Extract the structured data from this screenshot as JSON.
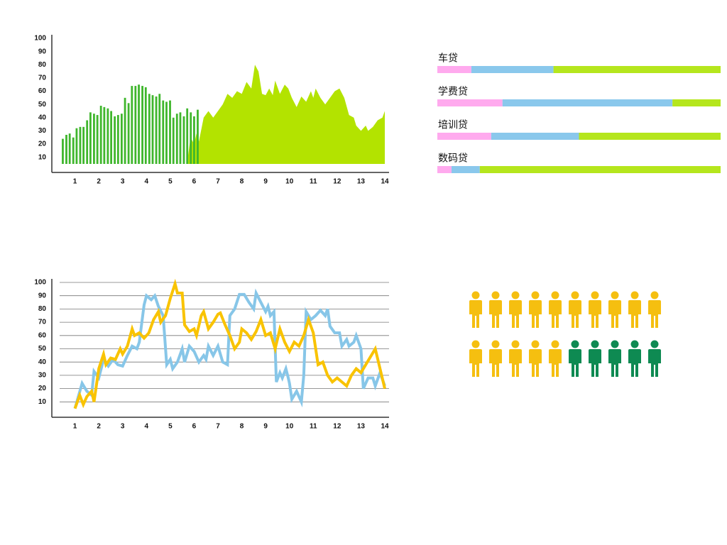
{
  "chart_data": [
    {
      "type": "combo",
      "xlim": [
        0,
        14
      ],
      "xticks": [
        1,
        2,
        3,
        4,
        5,
        6,
        7,
        8,
        9,
        10,
        11,
        12,
        13,
        14
      ],
      "ylim": [
        5,
        100
      ],
      "yticks": [
        10,
        20,
        30,
        40,
        50,
        60,
        70,
        80,
        90,
        100
      ],
      "series": [
        {
          "type": "bar",
          "color": "#3fb62c",
          "x": [
            0.49,
            0.64,
            0.78,
            0.93,
            1.07,
            1.22,
            1.36,
            1.51,
            1.65,
            1.8,
            1.94,
            2.09,
            2.23,
            2.38,
            2.52,
            2.67,
            2.81,
            2.96,
            3.1,
            3.25,
            3.39,
            3.54,
            3.68,
            3.83,
            3.97,
            4.12,
            4.26,
            4.41,
            4.55,
            4.7,
            4.84,
            4.99,
            5.13,
            5.28,
            5.42,
            5.57,
            5.71,
            5.86,
            6.0,
            6.15
          ],
          "values": [
            24,
            27,
            28,
            25,
            32,
            33,
            33,
            38,
            44,
            43,
            42,
            49,
            48,
            47,
            45,
            41,
            42,
            43,
            55,
            51,
            64,
            64,
            65,
            64,
            63,
            58,
            57,
            56,
            58,
            53,
            52,
            53,
            40,
            43,
            44,
            41,
            47,
            44,
            41,
            46
          ]
        },
        {
          "type": "area",
          "color": "#b3e300",
          "x": [
            5.7,
            5.85,
            6.0,
            6.1,
            6.2,
            6.4,
            6.6,
            6.8,
            7.0,
            7.2,
            7.4,
            7.6,
            7.8,
            8.0,
            8.2,
            8.4,
            8.55,
            8.7,
            8.85,
            9.0,
            9.15,
            9.3,
            9.4,
            9.6,
            9.8,
            9.95,
            10.1,
            10.3,
            10.5,
            10.7,
            10.9,
            11.0,
            11.1,
            11.3,
            11.5,
            11.7,
            11.9,
            12.1,
            12.3,
            12.5,
            12.7,
            12.8,
            13.0,
            13.2,
            13.3,
            13.5,
            13.7,
            13.9,
            14.0
          ],
          "values": [
            5,
            25,
            20,
            28,
            22,
            40,
            45,
            40,
            45,
            50,
            58,
            55,
            60,
            58,
            67,
            62,
            80,
            75,
            58,
            57,
            62,
            57,
            68,
            58,
            65,
            62,
            55,
            48,
            56,
            52,
            60,
            55,
            62,
            55,
            50,
            55,
            60,
            62,
            55,
            42,
            40,
            34,
            30,
            34,
            30,
            33,
            38,
            40,
            45
          ]
        }
      ]
    },
    {
      "type": "stackedbar",
      "categories": [
        "车贷",
        "学费贷",
        "培训贷",
        "数码贷"
      ],
      "xlim": [
        0,
        100
      ],
      "series": [
        {
          "color": "#ffaaee",
          "values": [
            12,
            23,
            19,
            5
          ]
        },
        {
          "color": "#8ac8ec",
          "values": [
            29,
            60,
            31,
            10
          ]
        },
        {
          "color": "#b5e61d",
          "values": [
            59,
            17,
            50,
            85
          ]
        }
      ]
    },
    {
      "type": "line",
      "xlim": [
        0,
        14
      ],
      "xticks": [
        1,
        2,
        3,
        4,
        5,
        6,
        7,
        8,
        9,
        10,
        11,
        12,
        13,
        14
      ],
      "ylim": [
        0,
        100
      ],
      "yticks": [
        10,
        20,
        30,
        40,
        50,
        60,
        70,
        80,
        90,
        100
      ],
      "grid": true,
      "series": [
        {
          "color": "#87c6e8",
          "x": [
            1,
            1.3,
            1.5,
            1.7,
            1.8,
            2.0,
            2.2,
            2.4,
            2.6,
            2.8,
            3.0,
            3.2,
            3.4,
            3.6,
            3.7,
            3.9,
            4.0,
            4.2,
            4.35,
            4.5,
            4.7,
            4.85,
            5.0,
            5.1,
            5.3,
            5.5,
            5.6,
            5.8,
            6.0,
            6.2,
            6.4,
            6.5,
            6.6,
            6.8,
            7.0,
            7.2,
            7.4,
            7.5,
            7.7,
            7.9,
            8.1,
            8.3,
            8.5,
            8.6,
            8.8,
            9.0,
            9.1,
            9.2,
            9.35,
            9.45,
            9.6,
            9.7,
            9.85,
            9.95,
            10.0,
            10.1,
            10.3,
            10.5,
            10.6,
            10.7,
            10.9,
            11.1,
            11.3,
            11.5,
            11.6,
            11.7,
            11.9,
            12.1,
            12.2,
            12.4,
            12.5,
            12.7,
            12.8,
            13.0,
            13.1,
            13.3,
            13.5,
            13.6,
            13.8,
            14.0
          ],
          "values": [
            5,
            24,
            18,
            15,
            33,
            28,
            42,
            37,
            42,
            38,
            37,
            45,
            52,
            50,
            55,
            83,
            90,
            87,
            90,
            82,
            75,
            38,
            42,
            35,
            40,
            50,
            40,
            52,
            48,
            40,
            45,
            42,
            52,
            45,
            52,
            40,
            38,
            75,
            80,
            91,
            91,
            85,
            80,
            92,
            85,
            78,
            82,
            75,
            78,
            25,
            32,
            28,
            35,
            28,
            24,
            12,
            18,
            10,
            30,
            78,
            72,
            75,
            79,
            75,
            80,
            67,
            62,
            62,
            52,
            57,
            52,
            55,
            60,
            50,
            20,
            28,
            28,
            22,
            32,
            22
          ]
        },
        {
          "color": "#f9c300",
          "x": [
            1,
            1.2,
            1.35,
            1.5,
            1.7,
            1.8,
            2.0,
            2.2,
            2.3,
            2.5,
            2.7,
            2.9,
            3.0,
            3.2,
            3.4,
            3.5,
            3.7,
            3.9,
            4.1,
            4.3,
            4.5,
            4.6,
            4.8,
            5.0,
            5.2,
            5.3,
            5.5,
            5.6,
            5.8,
            6.0,
            6.1,
            6.3,
            6.4,
            6.6,
            6.8,
            7.0,
            7.1,
            7.3,
            7.5,
            7.7,
            7.9,
            8.0,
            8.2,
            8.4,
            8.6,
            8.8,
            9.0,
            9.2,
            9.4,
            9.6,
            9.8,
            10.0,
            10.2,
            10.4,
            10.6,
            10.8,
            11.0,
            11.2,
            11.4,
            11.6,
            11.8,
            12.0,
            12.2,
            12.4,
            12.6,
            12.8,
            13.0,
            13.2,
            13.4,
            13.6,
            13.8,
            14.0
          ],
          "values": [
            5,
            15,
            8,
            14,
            18,
            10,
            35,
            46,
            38,
            43,
            42,
            50,
            46,
            52,
            65,
            60,
            62,
            58,
            62,
            72,
            78,
            70,
            75,
            88,
            99,
            92,
            92,
            68,
            63,
            65,
            60,
            75,
            78,
            65,
            70,
            76,
            77,
            68,
            60,
            50,
            55,
            65,
            62,
            57,
            63,
            72,
            60,
            62,
            50,
            65,
            55,
            48,
            55,
            52,
            60,
            72,
            62,
            38,
            40,
            30,
            25,
            28,
            25,
            22,
            30,
            35,
            32,
            38,
            44,
            50,
            35,
            20
          ]
        }
      ]
    },
    {
      "type": "pictograph",
      "series": [
        {
          "color": "#f5bf10",
          "values": [
            15
          ]
        },
        {
          "color": "#0e8a52",
          "values": [
            5
          ]
        }
      ]
    }
  ]
}
